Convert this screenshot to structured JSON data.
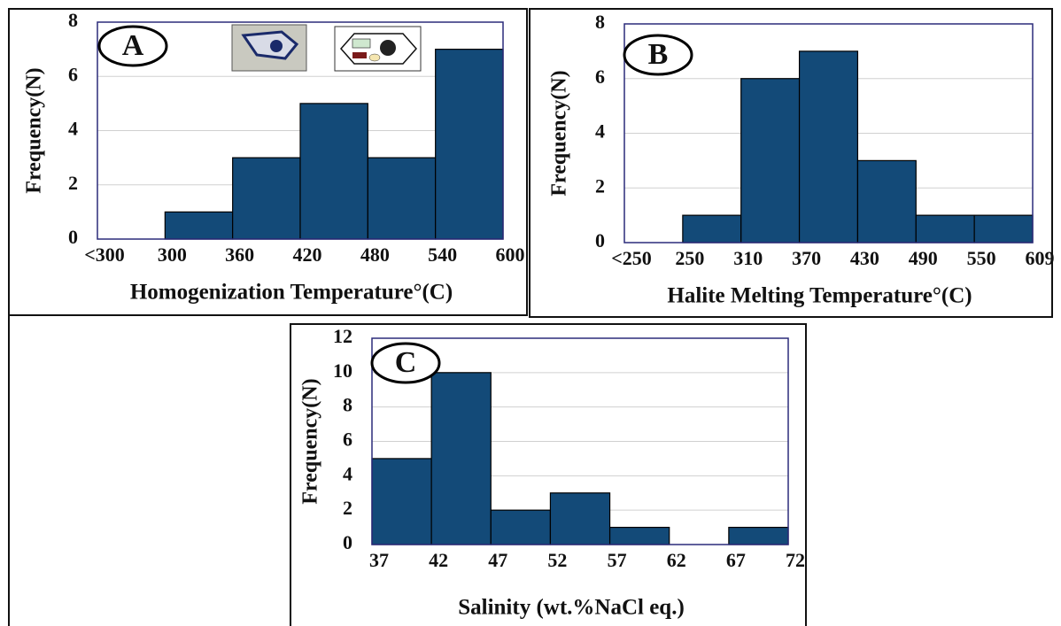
{
  "chart_data": [
    {
      "type": "histogram",
      "label": "A",
      "ylabel": "Frequency(N)",
      "xlabel": "Homogenization Temperature°(C)",
      "bins": [
        "<300",
        "300",
        "360",
        "420",
        "480",
        "540",
        "600"
      ],
      "values": [
        0,
        1,
        3,
        5,
        3,
        7
      ],
      "color": "#134a78",
      "ylim": [
        0,
        8
      ],
      "yticks": [
        0,
        2,
        4,
        6,
        8
      ],
      "grid": true
    },
    {
      "type": "histogram",
      "label": "B",
      "ylabel": "Frequency(N)",
      "xlabel": "Halite Melting Temperature°(C)",
      "bins": [
        "<250",
        "250",
        "310",
        "370",
        "430",
        "490",
        "550",
        "609"
      ],
      "values": [
        0,
        1,
        6,
        7,
        3,
        1,
        1
      ],
      "color": "#134a78",
      "ylim": [
        0,
        8
      ],
      "yticks": [
        0,
        2,
        4,
        6,
        8
      ],
      "grid": true
    },
    {
      "type": "histogram",
      "label": "C",
      "ylabel": "Frequency(N)",
      "xlabel": "Salinity (wt.%NaCl eq.)",
      "bins": [
        "37",
        "42",
        "47",
        "52",
        "57",
        "62",
        "67",
        "72"
      ],
      "values": [
        5,
        10,
        2,
        3,
        1,
        0,
        1
      ],
      "color": "#134a78",
      "ylim": [
        0,
        12
      ],
      "yticks": [
        0,
        2,
        4,
        6,
        8,
        10,
        12
      ],
      "grid": true
    }
  ]
}
